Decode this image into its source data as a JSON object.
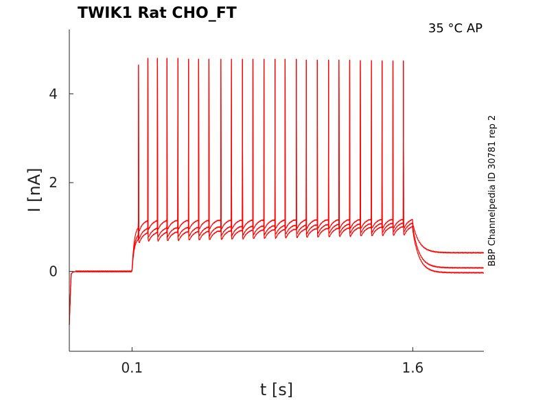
{
  "chart_data": {
    "type": "line",
    "title": "TWIK1  Rat  CHO_FT",
    "annotation": "35 °C  AP",
    "side_label": "BBP Channelpedia ID 30781 rep 2",
    "xlabel": "t [s]",
    "ylabel": "I [nA]",
    "xlim": [
      -0.235,
      1.98
    ],
    "ylim": [
      -1.8,
      5.45
    ],
    "xticks": [
      {
        "value": 0.1,
        "label": "0.1"
      },
      {
        "value": 1.6,
        "label": "1.6"
      }
    ],
    "yticks": [
      {
        "value": 0,
        "label": "0"
      },
      {
        "value": 2,
        "label": "2"
      },
      {
        "value": 4,
        "label": "4"
      }
    ],
    "grid": false,
    "color": "#ff0000",
    "stimulus": {
      "onset": 0.1,
      "offset": 1.6
    },
    "spike_times": [
      0.135,
      0.185,
      0.236,
      0.287,
      0.345,
      0.402,
      0.456,
      0.511,
      0.575,
      0.631,
      0.69,
      0.746,
      0.805,
      0.864,
      0.918,
      0.978,
      1.031,
      1.09,
      1.15,
      1.206,
      1.263,
      1.32,
      1.379,
      1.436,
      1.494,
      1.55
    ],
    "spike_peaks": [
      4.65,
      4.8,
      4.8,
      4.8,
      4.8,
      4.78,
      4.78,
      4.78,
      4.78,
      4.78,
      4.78,
      4.78,
      4.78,
      4.78,
      4.78,
      4.78,
      4.76,
      4.76,
      4.76,
      4.76,
      4.76,
      4.75,
      4.75,
      4.74,
      4.74,
      4.74
    ],
    "series": [
      {
        "baseline": 0.0,
        "plateau_start": 1.05,
        "plateau_end": 1.08,
        "tail": 0.42
      },
      {
        "baseline": 0.0,
        "plateau_start": 0.87,
        "plateau_end": 1.0,
        "tail": 0.08
      },
      {
        "baseline": 0.0,
        "plateau_start": 0.77,
        "plateau_end": 0.92,
        "tail": -0.03
      }
    ]
  }
}
